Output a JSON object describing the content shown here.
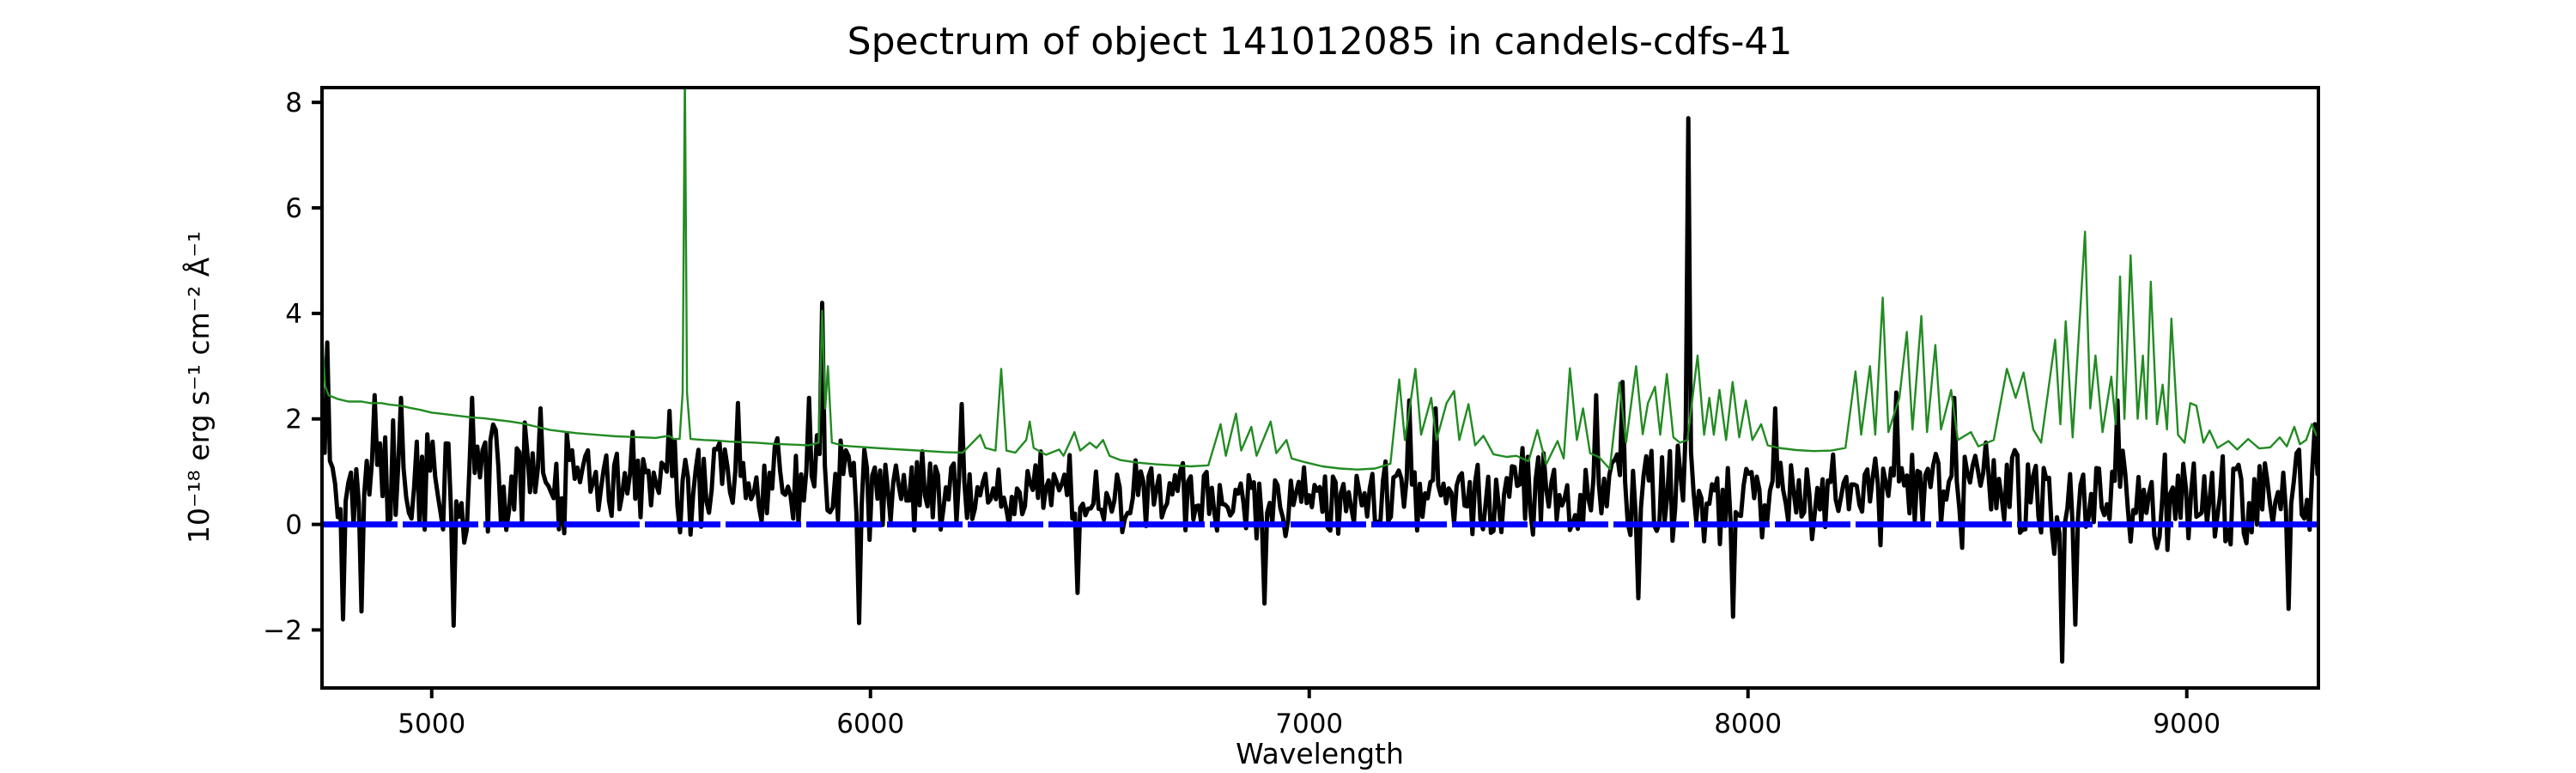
{
  "chart_data": {
    "type": "line",
    "title": "Spectrum of object 141012085 in candels-cdfs-41",
    "xlabel": "Wavelength",
    "ylabel": "10⁻¹⁸ erg s⁻¹ cm⁻² Å⁻¹",
    "xlim": [
      4750,
      9300
    ],
    "ylim": [
      -3.1,
      8.28
    ],
    "x_ticks": [
      5000,
      6000,
      7000,
      8000,
      9000
    ],
    "x_tick_labels": [
      "5000",
      "6000",
      "7000",
      "8000",
      "9000"
    ],
    "y_ticks": [
      -2,
      0,
      2,
      4,
      6,
      8
    ],
    "y_tick_labels": [
      "−2",
      "0",
      "2",
      "4",
      "6",
      "8"
    ],
    "grid": false,
    "legend": null,
    "background_color": "#ffffff",
    "frame_color": "#000000",
    "series": [
      {
        "name": "object-flux",
        "description": "black noisy object spectrum",
        "color": "#000000",
        "width": 5,
        "style": "solid",
        "generator": {
          "seed": 1411012,
          "step": 6,
          "envelope": [
            [
              4750,
              0.95,
              1.3
            ],
            [
              4800,
              0.75,
              1.55
            ],
            [
              4870,
              0.95,
              1.3
            ],
            [
              4960,
              0.85,
              1.3
            ],
            [
              5060,
              0.75,
              1.4
            ],
            [
              5160,
              0.85,
              1.2
            ],
            [
              5280,
              0.8,
              1.15
            ],
            [
              5400,
              0.78,
              1.1
            ],
            [
              5530,
              0.75,
              1.1
            ],
            [
              5650,
              0.72,
              1.05
            ],
            [
              5780,
              0.75,
              1.05
            ],
            [
              5900,
              0.7,
              1.1
            ],
            [
              6000,
              0.65,
              1.1
            ],
            [
              6120,
              0.62,
              1.0
            ],
            [
              6260,
              0.58,
              0.95
            ],
            [
              6400,
              0.55,
              0.9
            ],
            [
              6550,
              0.52,
              0.82
            ],
            [
              6700,
              0.5,
              0.78
            ],
            [
              6850,
              0.46,
              0.82
            ],
            [
              7000,
              0.44,
              0.8
            ],
            [
              7130,
              0.48,
              0.82
            ],
            [
              7250,
              0.55,
              0.95
            ],
            [
              7400,
              0.5,
              1.0
            ],
            [
              7550,
              0.52,
              1.05
            ],
            [
              7700,
              0.55,
              1.1
            ],
            [
              7850,
              0.52,
              1.08
            ],
            [
              8000,
              0.5,
              1.05
            ],
            [
              8150,
              0.55,
              1.02
            ],
            [
              8300,
              0.58,
              1.08
            ],
            [
              8450,
              0.6,
              1.12
            ],
            [
              8600,
              0.58,
              1.18
            ],
            [
              8720,
              0.35,
              1.3
            ],
            [
              8850,
              0.5,
              1.28
            ],
            [
              9000,
              0.45,
              1.1
            ],
            [
              9150,
              0.45,
              1.02
            ],
            [
              9300,
              0.85,
              1.1
            ]
          ],
          "features": [
            [
              4763,
              3.45
            ],
            [
              4800,
              -1.8
            ],
            [
              4838,
              -1.65
            ],
            [
              4872,
              2.45
            ],
            [
              4932,
              2.4
            ],
            [
              5052,
              -1.92
            ],
            [
              5092,
              2.4
            ],
            [
              5250,
              2.2
            ],
            [
              5540,
              2.15
            ],
            [
              5700,
              2.3
            ],
            [
              5860,
              2.4
            ],
            [
              5888,
              4.2
            ],
            [
              5975,
              -1.87
            ],
            [
              6205,
              2.28
            ],
            [
              6470,
              -1.3
            ],
            [
              6900,
              -1.5
            ],
            [
              7230,
              2.35
            ],
            [
              7285,
              2.2
            ],
            [
              7653,
              2.45
            ],
            [
              7713,
              2.7
            ],
            [
              7750,
              -1.4
            ],
            [
              7865,
              7.7
            ],
            [
              7968,
              -1.75
            ],
            [
              8060,
              2.2
            ],
            [
              8340,
              2.5
            ],
            [
              8470,
              2.4
            ],
            [
              8715,
              -2.6
            ],
            [
              8748,
              -1.9
            ],
            [
              8843,
              2.35
            ],
            [
              9230,
              -1.6
            ],
            [
              9290,
              1.9
            ]
          ]
        }
      },
      {
        "name": "sky-noise-spectrum",
        "description": "green sky/error spectrum",
        "color": "#228b22",
        "width": 2.4,
        "style": "solid",
        "points": [
          [
            4750,
            3.75
          ],
          [
            4753,
            3.2
          ],
          [
            4757,
            2.62
          ],
          [
            4765,
            2.45
          ],
          [
            4785,
            2.38
          ],
          [
            4810,
            2.33
          ],
          [
            4840,
            2.33
          ],
          [
            4860,
            2.3
          ],
          [
            4885,
            2.3
          ],
          [
            4905,
            2.27
          ],
          [
            4930,
            2.25
          ],
          [
            4950,
            2.21
          ],
          [
            4975,
            2.17
          ],
          [
            5000,
            2.12
          ],
          [
            5030,
            2.09
          ],
          [
            5060,
            2.06
          ],
          [
            5090,
            2.03
          ],
          [
            5120,
            2.01
          ],
          [
            5150,
            1.98
          ],
          [
            5180,
            1.95
          ],
          [
            5210,
            1.91
          ],
          [
            5240,
            1.85
          ],
          [
            5270,
            1.79
          ],
          [
            5300,
            1.76
          ],
          [
            5330,
            1.73
          ],
          [
            5360,
            1.71
          ],
          [
            5390,
            1.69
          ],
          [
            5420,
            1.67
          ],
          [
            5450,
            1.66
          ],
          [
            5480,
            1.65
          ],
          [
            5510,
            1.64
          ],
          [
            5540,
            1.68
          ],
          [
            5552,
            1.62
          ],
          [
            5565,
            1.62
          ],
          [
            5572,
            2.5
          ],
          [
            5577,
            8.6
          ],
          [
            5582,
            2.5
          ],
          [
            5590,
            1.62
          ],
          [
            5620,
            1.6
          ],
          [
            5650,
            1.59
          ],
          [
            5680,
            1.57
          ],
          [
            5710,
            1.56
          ],
          [
            5740,
            1.55
          ],
          [
            5770,
            1.53
          ],
          [
            5800,
            1.52
          ],
          [
            5830,
            1.51
          ],
          [
            5860,
            1.5
          ],
          [
            5882,
            1.55
          ],
          [
            5890,
            4.05
          ],
          [
            5897,
            2.2
          ],
          [
            5903,
            3.0
          ],
          [
            5912,
            1.55
          ],
          [
            5940,
            1.49
          ],
          [
            5975,
            1.47
          ],
          [
            6010,
            1.45
          ],
          [
            6050,
            1.43
          ],
          [
            6090,
            1.41
          ],
          [
            6130,
            1.39
          ],
          [
            6170,
            1.37
          ],
          [
            6210,
            1.36
          ],
          [
            6250,
            1.7
          ],
          [
            6262,
            1.45
          ],
          [
            6285,
            1.4
          ],
          [
            6298,
            2.95
          ],
          [
            6310,
            1.4
          ],
          [
            6330,
            1.36
          ],
          [
            6355,
            1.6
          ],
          [
            6363,
            1.95
          ],
          [
            6372,
            1.45
          ],
          [
            6400,
            1.32
          ],
          [
            6430,
            1.42
          ],
          [
            6440,
            1.3
          ],
          [
            6465,
            1.75
          ],
          [
            6478,
            1.4
          ],
          [
            6500,
            1.55
          ],
          [
            6515,
            1.45
          ],
          [
            6530,
            1.6
          ],
          [
            6545,
            1.3
          ],
          [
            6570,
            1.22
          ],
          [
            6610,
            1.17
          ],
          [
            6650,
            1.14
          ],
          [
            6690,
            1.12
          ],
          [
            6730,
            1.1
          ],
          [
            6770,
            1.12
          ],
          [
            6798,
            1.9
          ],
          [
            6810,
            1.3
          ],
          [
            6833,
            2.1
          ],
          [
            6845,
            1.4
          ],
          [
            6868,
            1.85
          ],
          [
            6880,
            1.3
          ],
          [
            6912,
            1.95
          ],
          [
            6925,
            1.35
          ],
          [
            6948,
            1.6
          ],
          [
            6960,
            1.25
          ],
          [
            6990,
            1.18
          ],
          [
            7030,
            1.1
          ],
          [
            7070,
            1.06
          ],
          [
            7110,
            1.04
          ],
          [
            7150,
            1.06
          ],
          [
            7185,
            1.15
          ],
          [
            7205,
            2.75
          ],
          [
            7218,
            1.6
          ],
          [
            7242,
            2.95
          ],
          [
            7255,
            1.7
          ],
          [
            7278,
            2.4
          ],
          [
            7290,
            1.6
          ],
          [
            7313,
            2.3
          ],
          [
            7330,
            2.53
          ],
          [
            7342,
            1.6
          ],
          [
            7363,
            2.28
          ],
          [
            7378,
            1.5
          ],
          [
            7397,
            1.68
          ],
          [
            7420,
            1.33
          ],
          [
            7450,
            1.28
          ],
          [
            7472,
            1.3
          ],
          [
            7500,
            1.2
          ],
          [
            7520,
            1.79
          ],
          [
            7540,
            1.14
          ],
          [
            7566,
            1.58
          ],
          [
            7580,
            1.25
          ],
          [
            7594,
            2.96
          ],
          [
            7610,
            1.6
          ],
          [
            7624,
            2.2
          ],
          [
            7640,
            1.35
          ],
          [
            7660,
            1.28
          ],
          [
            7685,
            1.05
          ],
          [
            7707,
            2.69
          ],
          [
            7722,
            1.55
          ],
          [
            7745,
            3.0
          ],
          [
            7760,
            1.71
          ],
          [
            7772,
            2.3
          ],
          [
            7788,
            2.61
          ],
          [
            7800,
            1.7
          ],
          [
            7815,
            2.85
          ],
          [
            7830,
            1.65
          ],
          [
            7845,
            1.55
          ],
          [
            7862,
            1.6
          ],
          [
            7885,
            3.2
          ],
          [
            7900,
            1.7
          ],
          [
            7912,
            2.4
          ],
          [
            7922,
            1.7
          ],
          [
            7935,
            2.55
          ],
          [
            7950,
            1.6
          ],
          [
            7965,
            2.7
          ],
          [
            7980,
            1.65
          ],
          [
            7995,
            2.35
          ],
          [
            8010,
            1.6
          ],
          [
            8030,
            1.9
          ],
          [
            8045,
            1.5
          ],
          [
            8070,
            1.45
          ],
          [
            8110,
            1.41
          ],
          [
            8150,
            1.39
          ],
          [
            8190,
            1.4
          ],
          [
            8222,
            1.45
          ],
          [
            8245,
            2.9
          ],
          [
            8258,
            1.7
          ],
          [
            8278,
            3.0
          ],
          [
            8290,
            1.7
          ],
          [
            8307,
            4.3
          ],
          [
            8320,
            1.75
          ],
          [
            8345,
            2.4
          ],
          [
            8362,
            3.65
          ],
          [
            8375,
            1.8
          ],
          [
            8395,
            3.95
          ],
          [
            8408,
            1.75
          ],
          [
            8427,
            3.4
          ],
          [
            8440,
            1.8
          ],
          [
            8463,
            2.55
          ],
          [
            8478,
            1.6
          ],
          [
            8508,
            1.75
          ],
          [
            8525,
            1.48
          ],
          [
            8560,
            1.6
          ],
          [
            8590,
            2.95
          ],
          [
            8610,
            2.4
          ],
          [
            8628,
            2.88
          ],
          [
            8650,
            1.8
          ],
          [
            8668,
            1.55
          ],
          [
            8700,
            3.5
          ],
          [
            8712,
            1.9
          ],
          [
            8724,
            3.85
          ],
          [
            8740,
            1.65
          ],
          [
            8768,
            5.55
          ],
          [
            8780,
            2.2
          ],
          [
            8792,
            3.2
          ],
          [
            8808,
            1.75
          ],
          [
            8828,
            2.8
          ],
          [
            8838,
            1.9
          ],
          [
            8848,
            4.7
          ],
          [
            8858,
            2.0
          ],
          [
            8872,
            5.1
          ],
          [
            8888,
            2.0
          ],
          [
            8900,
            3.2
          ],
          [
            8908,
            2.0
          ],
          [
            8918,
            4.6
          ],
          [
            8932,
            1.9
          ],
          [
            8945,
            2.65
          ],
          [
            8955,
            1.8
          ],
          [
            8965,
            3.9
          ],
          [
            8980,
            1.7
          ],
          [
            8995,
            1.55
          ],
          [
            9008,
            2.3
          ],
          [
            9022,
            2.25
          ],
          [
            9038,
            1.55
          ],
          [
            9052,
            1.78
          ],
          [
            9070,
            1.45
          ],
          [
            9095,
            1.58
          ],
          [
            9115,
            1.42
          ],
          [
            9140,
            1.62
          ],
          [
            9165,
            1.44
          ],
          [
            9190,
            1.46
          ],
          [
            9212,
            1.65
          ],
          [
            9228,
            1.48
          ],
          [
            9245,
            1.85
          ],
          [
            9258,
            1.52
          ],
          [
            9272,
            1.6
          ],
          [
            9285,
            1.9
          ],
          [
            9295,
            1.7
          ],
          [
            9300,
            1.65
          ]
        ]
      },
      {
        "name": "zero-reference-line",
        "description": "blue dashed horizontal line at flux = 0",
        "color": "#0000ff",
        "width": 7,
        "style": "dashed",
        "dash": [
          88,
          6
        ],
        "y": 0
      }
    ],
    "layout": {
      "plot_left": 375,
      "plot_top": 102,
      "plot_right": 2700,
      "plot_bottom": 801,
      "tick_length": 12,
      "tick_width": 4,
      "frame_width": 4
    }
  }
}
